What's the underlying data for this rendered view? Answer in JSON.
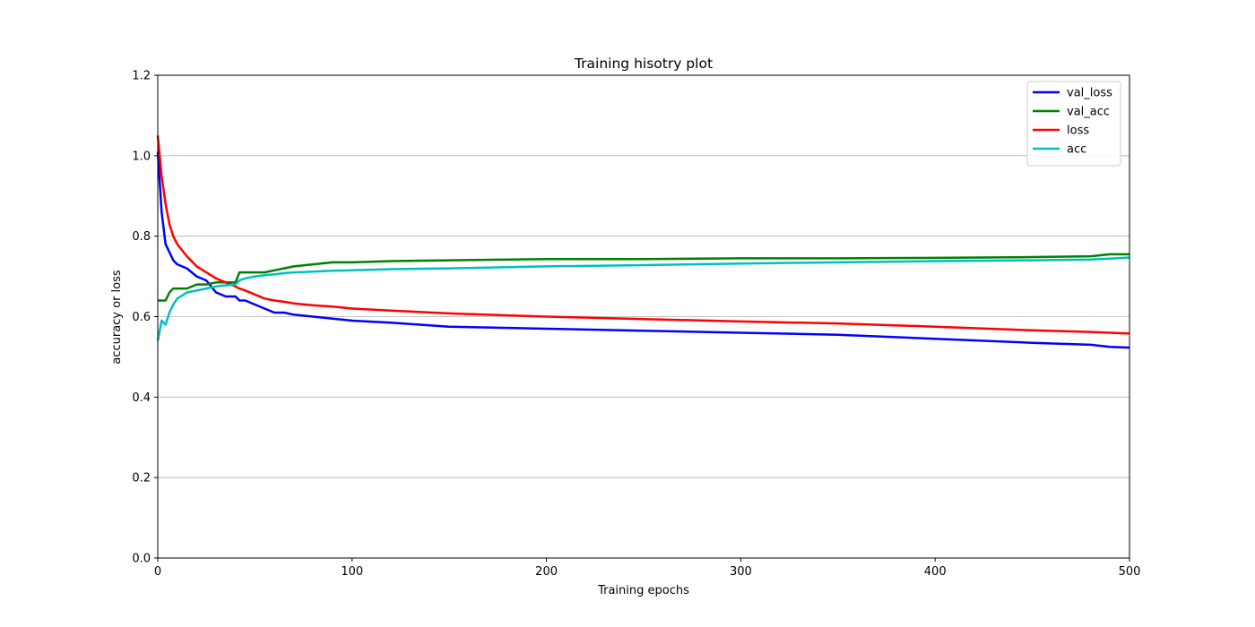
{
  "chart_data": {
    "type": "line",
    "title": "Training hisotry plot",
    "xlabel": "Training epochs",
    "ylabel": "accuracy or loss",
    "xlim": [
      0,
      500
    ],
    "ylim": [
      0,
      1.2
    ],
    "x_ticks": [
      0,
      100,
      200,
      300,
      400,
      500
    ],
    "y_ticks": [
      0.0,
      0.2,
      0.4,
      0.6,
      0.8,
      1.0,
      1.2
    ],
    "x_tick_labels": [
      "0",
      "100",
      "200",
      "300",
      "400",
      "500"
    ],
    "y_tick_labels": [
      "0.0",
      "0.2",
      "0.4",
      "0.6",
      "0.8",
      "1.0",
      "1.2"
    ],
    "grid": "horizontal",
    "legend_position": "top-right",
    "x": [
      0,
      2,
      4,
      6,
      8,
      10,
      15,
      20,
      25,
      30,
      35,
      40,
      42,
      45,
      50,
      55,
      60,
      65,
      70,
      80,
      90,
      100,
      120,
      150,
      200,
      250,
      300,
      350,
      400,
      450,
      480,
      490,
      500
    ],
    "series": [
      {
        "name": "val_loss",
        "color": "#0000ff",
        "values": [
          1.01,
          0.86,
          0.78,
          0.76,
          0.74,
          0.73,
          0.72,
          0.7,
          0.69,
          0.66,
          0.65,
          0.65,
          0.64,
          0.64,
          0.63,
          0.62,
          0.61,
          0.61,
          0.605,
          0.6,
          0.595,
          0.59,
          0.585,
          0.575,
          0.57,
          0.565,
          0.56,
          0.555,
          0.545,
          0.535,
          0.53,
          0.525,
          0.523
        ]
      },
      {
        "name": "val_acc",
        "color": "#008000",
        "values": [
          0.64,
          0.64,
          0.64,
          0.66,
          0.67,
          0.67,
          0.67,
          0.68,
          0.68,
          0.685,
          0.685,
          0.685,
          0.71,
          0.71,
          0.71,
          0.71,
          0.715,
          0.72,
          0.725,
          0.73,
          0.735,
          0.735,
          0.738,
          0.74,
          0.743,
          0.743,
          0.745,
          0.745,
          0.746,
          0.748,
          0.75,
          0.755,
          0.755
        ]
      },
      {
        "name": "loss",
        "color": "#ff0000",
        "values": [
          1.05,
          0.95,
          0.88,
          0.83,
          0.8,
          0.78,
          0.75,
          0.725,
          0.71,
          0.695,
          0.685,
          0.675,
          0.67,
          0.665,
          0.655,
          0.645,
          0.64,
          0.637,
          0.633,
          0.628,
          0.625,
          0.62,
          0.615,
          0.608,
          0.6,
          0.594,
          0.588,
          0.583,
          0.575,
          0.566,
          0.562,
          0.56,
          0.558
        ]
      },
      {
        "name": "acc",
        "color": "#00bfbf",
        "values": [
          0.54,
          0.59,
          0.58,
          0.61,
          0.63,
          0.645,
          0.66,
          0.665,
          0.67,
          0.675,
          0.678,
          0.68,
          0.69,
          0.695,
          0.7,
          0.703,
          0.705,
          0.708,
          0.71,
          0.712,
          0.714,
          0.715,
          0.718,
          0.72,
          0.725,
          0.728,
          0.732,
          0.735,
          0.738,
          0.74,
          0.742,
          0.744,
          0.747
        ]
      }
    ]
  }
}
